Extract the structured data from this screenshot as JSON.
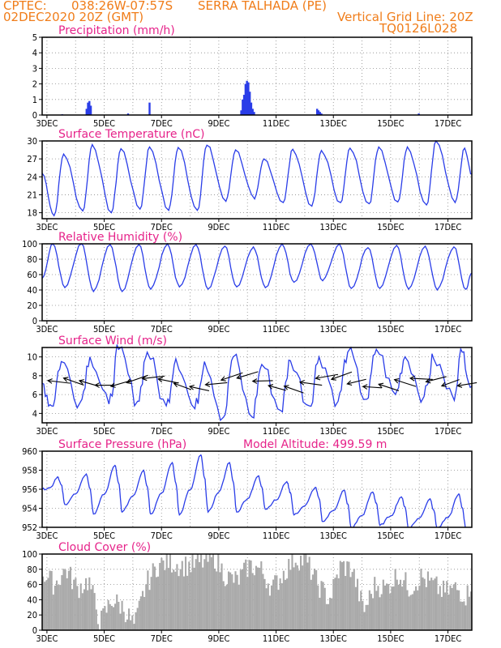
{
  "header": {
    "source": "CPTEC:",
    "coords": "038:26W-07:57S",
    "station": "SERRA TALHADA (PE)",
    "run": "02DEC2020 20Z (GMT)",
    "grid_note": "Vertical Grid Line: 20Z",
    "model_code": "TQ0126L028"
  },
  "colors": {
    "header": "#f07d1a",
    "panel_title": "#e6238a",
    "series_line": "#2a3de8",
    "precip_bar": "#2a3de8",
    "cloud_fill": "#a9a9a9",
    "wind_arrows": "#000000"
  },
  "x_axis": {
    "start": "02DEC2020 20Z",
    "end": "17DEC2020 20Z",
    "ticks": [
      "3DEC",
      "5DEC",
      "7DEC",
      "9DEC",
      "11DEC",
      "13DEC",
      "15DEC",
      "17DEC"
    ]
  },
  "chart_data": [
    {
      "id": "precip",
      "type": "bar",
      "title": "Precipitation (mm/h)",
      "ylim": [
        0,
        5
      ],
      "yticks": [
        0,
        1,
        2,
        3,
        4,
        5
      ],
      "grid": true,
      "x_days": [
        1.55,
        1.6,
        1.65,
        1.7,
        3.75,
        6.95,
        7.0,
        7.05,
        7.1,
        7.15,
        7.2,
        7.25,
        7.3,
        7.35,
        7.4,
        9.6,
        9.65,
        9.7,
        9.75,
        3.0,
        0.7,
        13.15
      ],
      "values": [
        0.4,
        0.8,
        0.9,
        0.6,
        0.8,
        0.3,
        1.0,
        1.3,
        2.0,
        2.2,
        2.1,
        1.5,
        0.8,
        0.4,
        0.2,
        0.4,
        0.3,
        0.2,
        0.1,
        0.1,
        0.05,
        0.1
      ]
    },
    {
      "id": "temp",
      "type": "line",
      "title": "Surface Temperature (nC)",
      "ylim": [
        17,
        30
      ],
      "yticks": [
        18,
        21,
        24,
        27,
        30
      ],
      "grid": true,
      "daily_max": [
        28.3,
        27.8,
        29.4,
        28.7,
        29.0,
        28.9,
        29.3,
        28.5,
        27.0,
        28.6,
        28.4,
        28.8,
        29.0,
        29.0,
        30.0,
        28.8,
        28.6
      ],
      "daily_min": [
        17.6,
        17.5,
        18.3,
        18.0,
        18.6,
        18.4,
        18.4,
        19.9,
        20.3,
        19.7,
        19.1,
        19.7,
        19.5,
        19.8,
        19.3,
        19.7,
        21.0
      ],
      "start_value": 24.6,
      "end_value": 24.5
    },
    {
      "id": "rh",
      "type": "line",
      "title": "Relative Humidity (%)",
      "ylim": [
        0,
        100
      ],
      "yticks": [
        0,
        20,
        40,
        60,
        80,
        100
      ],
      "grid": true,
      "daily_max": [
        100,
        100,
        100,
        99,
        99,
        100,
        99,
        97,
        96,
        100,
        100,
        100,
        95,
        98,
        97,
        96,
        97
      ],
      "daily_min": [
        43,
        43,
        38,
        38,
        41,
        44,
        41,
        44,
        43,
        50,
        52,
        42,
        42,
        41,
        40,
        41,
        40
      ],
      "start_value": 55,
      "end_value": 62
    },
    {
      "id": "wind",
      "type": "line",
      "title": "Surface Wind (m/s)",
      "ylim": [
        3,
        11
      ],
      "yticks": [
        4,
        6,
        8,
        10
      ],
      "grid": true,
      "speed_daily_max": [
        10.8,
        9.5,
        10.0,
        10.8,
        10.5,
        9.8,
        9.5,
        10.0,
        9.2,
        9.6,
        10.0,
        10.5,
        10.8,
        10.0,
        9.8,
        10.5,
        8.5
      ],
      "speed_daily_min": [
        6.2,
        4.8,
        5.2,
        5.0,
        5.3,
        4.8,
        4.5,
        3.6,
        3.6,
        4.3,
        4.8,
        5.3,
        5.5,
        6.0,
        5.8,
        5.8,
        5.2
      ],
      "arrows": "wind-direction-arrows"
    },
    {
      "id": "pressure",
      "type": "line",
      "title": "Surface Pressure (hPa)",
      "annotation": "Model Altitude: 499.59 m",
      "ylim": [
        952,
        960
      ],
      "yticks": [
        952,
        954,
        956,
        958,
        960
      ],
      "grid": true,
      "daily_max": [
        957.6,
        957.3,
        957.6,
        958.5,
        958.0,
        958.8,
        959.6,
        958.8,
        957.4,
        956.8,
        956.2,
        955.9,
        955.7,
        955.2,
        955.0,
        955.5,
        954.0
      ],
      "daily_min": [
        955.2,
        954.4,
        953.4,
        953.6,
        953.4,
        953.3,
        953.6,
        953.6,
        953.9,
        953.3,
        952.6,
        951.8,
        952.2,
        951.9,
        951.5,
        951.4,
        951.5
      ],
      "start_value": 956.0
    },
    {
      "id": "cloud",
      "type": "area",
      "title": "Cloud Cover (%)",
      "ylim": [
        0,
        100
      ],
      "yticks": [
        0,
        20,
        40,
        60,
        80,
        100
      ],
      "grid": true,
      "x_days": [
        0,
        0.4,
        0.8,
        1.2,
        1.6,
        2.0,
        2.4,
        2.8,
        3.2,
        3.6,
        4.0,
        4.4,
        4.8,
        5.2,
        5.6,
        6.0,
        6.4,
        6.8,
        7.2,
        7.6,
        8.0,
        8.4,
        8.8,
        9.2,
        9.6,
        10.0,
        10.4,
        10.8,
        11.2,
        11.6,
        12.0,
        12.4,
        12.8,
        13.2,
        13.6,
        14.0,
        14.4,
        14.8,
        15.0
      ],
      "values": [
        75,
        60,
        80,
        55,
        65,
        10,
        40,
        30,
        5,
        60,
        85,
        90,
        85,
        85,
        90,
        95,
        70,
        65,
        85,
        80,
        55,
        75,
        95,
        90,
        60,
        40,
        85,
        80,
        25,
        60,
        55,
        75,
        55,
        70,
        60,
        50,
        55,
        45,
        70
      ]
    }
  ]
}
